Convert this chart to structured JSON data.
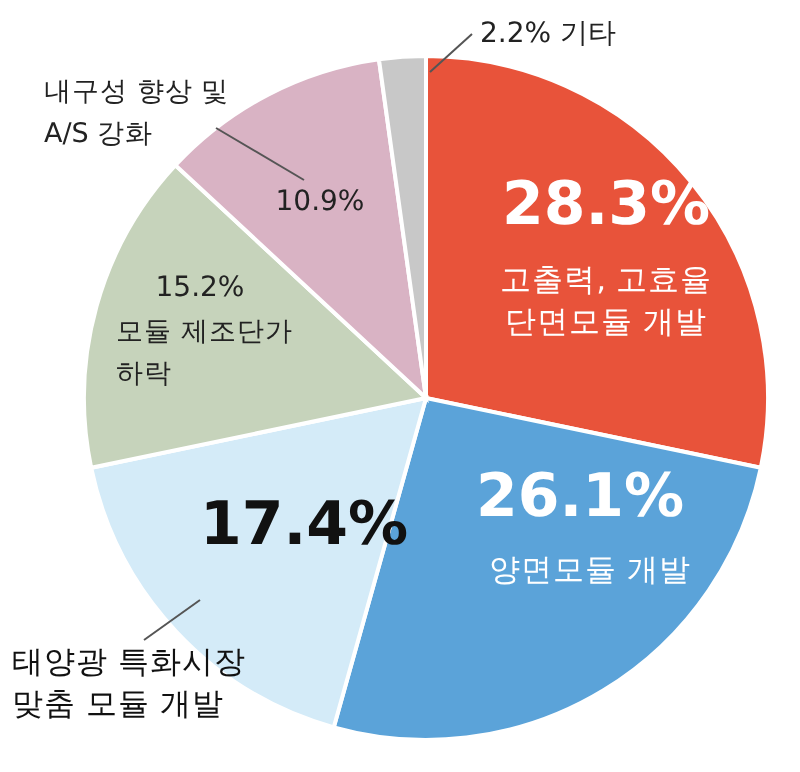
{
  "chart_data": {
    "type": "pie",
    "categories": [
      "고출력, 고효율\n단면모듈 개발",
      "양면모듈 개발",
      "태양광 특화시장\n맞춤 모듈 개발",
      "모듈 제조단가\n하락",
      "내구성 향상 및\nA/S 강화",
      "기타"
    ],
    "values": [
      28.3,
      26.1,
      17.4,
      15.2,
      10.9,
      2.2
    ],
    "value_labels": [
      "28.3%",
      "26.1%",
      "17.4%",
      "15.2%",
      "10.9%",
      "2.2%"
    ],
    "colors": [
      "#e8533a",
      "#5ba3d9",
      "#d4ebf8",
      "#c6d3bb",
      "#d9b3c4",
      "#c8c8c8"
    ]
  }
}
